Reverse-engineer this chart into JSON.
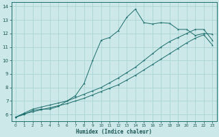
{
  "xlabel": "Humidex (Indice chaleur)",
  "bg_color": "#cce8e8",
  "grid_color": "#aad4d4",
  "line_color": "#1a6b6b",
  "xlim": [
    -0.5,
    23.5
  ],
  "ylim": [
    5.5,
    14.3
  ],
  "xticks": [
    0,
    1,
    2,
    3,
    4,
    5,
    6,
    7,
    8,
    9,
    10,
    11,
    12,
    13,
    14,
    15,
    16,
    17,
    18,
    19,
    20,
    21,
    22,
    23
  ],
  "yticks": [
    6,
    7,
    8,
    9,
    10,
    11,
    12,
    13,
    14
  ],
  "line1_x": [
    0,
    1,
    2,
    3,
    4,
    5,
    6,
    7,
    8,
    9,
    10,
    11,
    12,
    13,
    14,
    15,
    16,
    17,
    18,
    19,
    20,
    21,
    22,
    23
  ],
  "line1_y": [
    5.8,
    6.0,
    6.3,
    6.4,
    6.4,
    6.6,
    7.0,
    7.4,
    8.3,
    10.0,
    11.5,
    11.7,
    12.2,
    13.2,
    13.8,
    12.8,
    12.7,
    12.8,
    12.75,
    12.3,
    12.3,
    11.85,
    12.0,
    11.95
  ],
  "line2_x": [
    0,
    1,
    2,
    3,
    4,
    5,
    6,
    7,
    8,
    9,
    10,
    11,
    12,
    13,
    14,
    15,
    16,
    17,
    18,
    19,
    20,
    21,
    22,
    23
  ],
  "line2_y": [
    5.8,
    6.1,
    6.4,
    6.55,
    6.7,
    6.85,
    7.0,
    7.25,
    7.5,
    7.75,
    8.0,
    8.35,
    8.7,
    9.1,
    9.5,
    10.0,
    10.5,
    11.0,
    11.4,
    11.7,
    12.0,
    12.3,
    12.3,
    11.5
  ],
  "line3_x": [
    0,
    1,
    2,
    3,
    4,
    5,
    6,
    7,
    8,
    9,
    10,
    11,
    12,
    13,
    14,
    15,
    16,
    17,
    18,
    19,
    20,
    21,
    22,
    23
  ],
  "line3_y": [
    5.8,
    6.05,
    6.2,
    6.35,
    6.5,
    6.65,
    6.8,
    7.0,
    7.2,
    7.45,
    7.7,
    7.95,
    8.2,
    8.55,
    8.9,
    9.3,
    9.7,
    10.1,
    10.5,
    10.9,
    11.3,
    11.65,
    11.9,
    11.15
  ]
}
